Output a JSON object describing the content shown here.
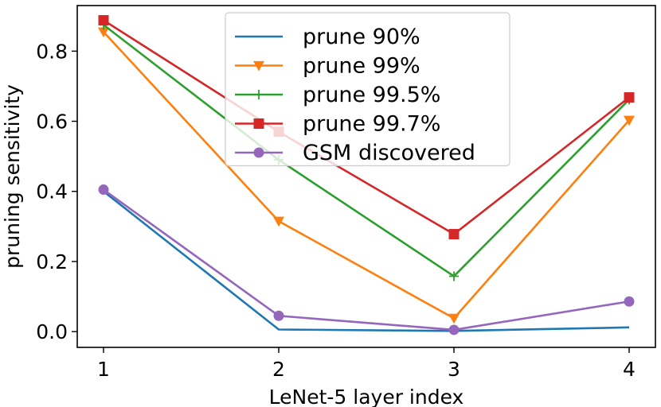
{
  "chart_data": {
    "type": "line",
    "title": "",
    "xlabel": "LeNet-5 layer index",
    "ylabel": "pruning sensitivity",
    "x": [
      1,
      2,
      3,
      4
    ],
    "xticks": [
      "1",
      "2",
      "3",
      "4"
    ],
    "yticks": [
      "0.0",
      "0.2",
      "0.4",
      "0.6",
      "0.8"
    ],
    "xlim": [
      0.85,
      4.15
    ],
    "ylim": [
      -0.045,
      0.93
    ],
    "grid": false,
    "legend_position": "top-center",
    "series": [
      {
        "name": "prune 90%",
        "values": [
          0.4,
          0.006,
          0.002,
          0.012
        ],
        "color": "#1f77b4",
        "marker": "none"
      },
      {
        "name": "prune 99%",
        "values": [
          0.855,
          0.315,
          0.038,
          0.603
        ],
        "color": "#ff7f0e",
        "marker": "triangle-down"
      },
      {
        "name": "prune 99.5%",
        "values": [
          0.875,
          0.49,
          0.158,
          0.662
        ],
        "color": "#2ca02c",
        "marker": "plus"
      },
      {
        "name": "prune 99.7%",
        "values": [
          0.888,
          0.57,
          0.278,
          0.668
        ],
        "color": "#d62728",
        "marker": "square"
      },
      {
        "name": "GSM discovered",
        "values": [
          0.405,
          0.045,
          0.005,
          0.086
        ],
        "color": "#9467bd",
        "marker": "circle"
      }
    ]
  }
}
